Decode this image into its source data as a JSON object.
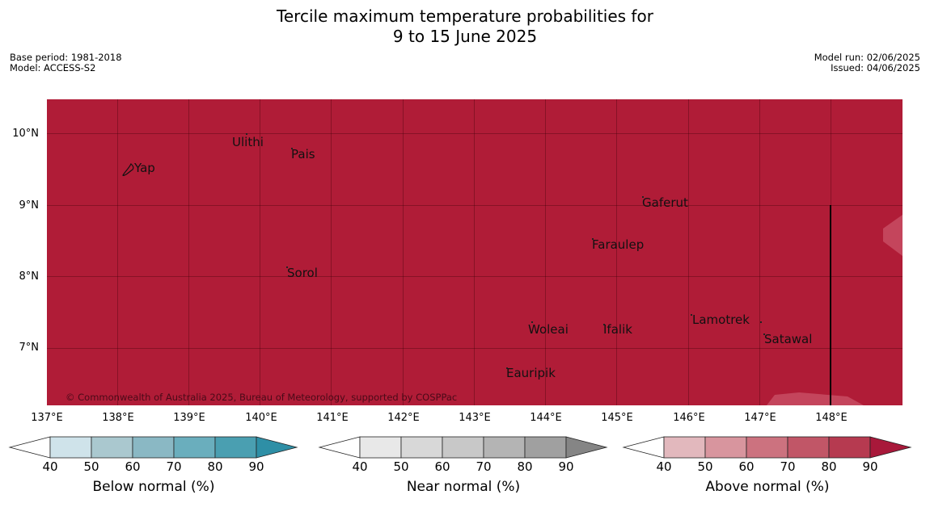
{
  "title": {
    "line1": "Tercile maximum temperature probabilities for",
    "line2": "9 to 15 June 2025"
  },
  "meta": {
    "base_period": "Base period: 1981-2018",
    "model": "Model: ACCESS-S2",
    "model_run": "Model run: 02/06/2025",
    "issued": "Issued: 04/06/2025"
  },
  "map": {
    "fill_color": "#b01c37",
    "latitudes": [
      "10°N",
      "9°N",
      "8°N",
      "7°N"
    ],
    "longitudes": [
      "137°E",
      "138°E",
      "139°E",
      "140°E",
      "141°E",
      "142°E",
      "143°E",
      "144°E",
      "145°E",
      "146°E",
      "147°E",
      "148°E"
    ],
    "places": [
      "Yap",
      "Ulithi",
      "Pais",
      "Gaferut",
      "Faraulep",
      "Sorol",
      "Lamotrek",
      "Woleai",
      "Ifalik",
      "Satawal",
      "Eauripik"
    ],
    "copyright": "© Commonwealth of Australia 2025, Bureau of Meteorology, supported by COSPPac"
  },
  "colorbars": [
    {
      "label": "Below normal (%)",
      "ticks": [
        "40",
        "50",
        "60",
        "70",
        "80",
        "90"
      ],
      "colors": [
        "#cfe3ea",
        "#aac8cf",
        "#8ab8c4",
        "#6aaebd",
        "#4a9fb1",
        "#2e8fa6"
      ]
    },
    {
      "label": "Near normal (%)",
      "ticks": [
        "40",
        "50",
        "60",
        "70",
        "80",
        "90"
      ],
      "colors": [
        "#e8e8e8",
        "#d8d8d8",
        "#c8c8c8",
        "#b4b4b4",
        "#a0a0a0",
        "#858585"
      ]
    },
    {
      "label": "Above normal (%)",
      "ticks": [
        "40",
        "50",
        "60",
        "70",
        "80",
        "90"
      ],
      "colors": [
        "#e2b8bd",
        "#d8959e",
        "#cc727f",
        "#c15667",
        "#b63a50",
        "#a8183a"
      ]
    }
  ]
}
